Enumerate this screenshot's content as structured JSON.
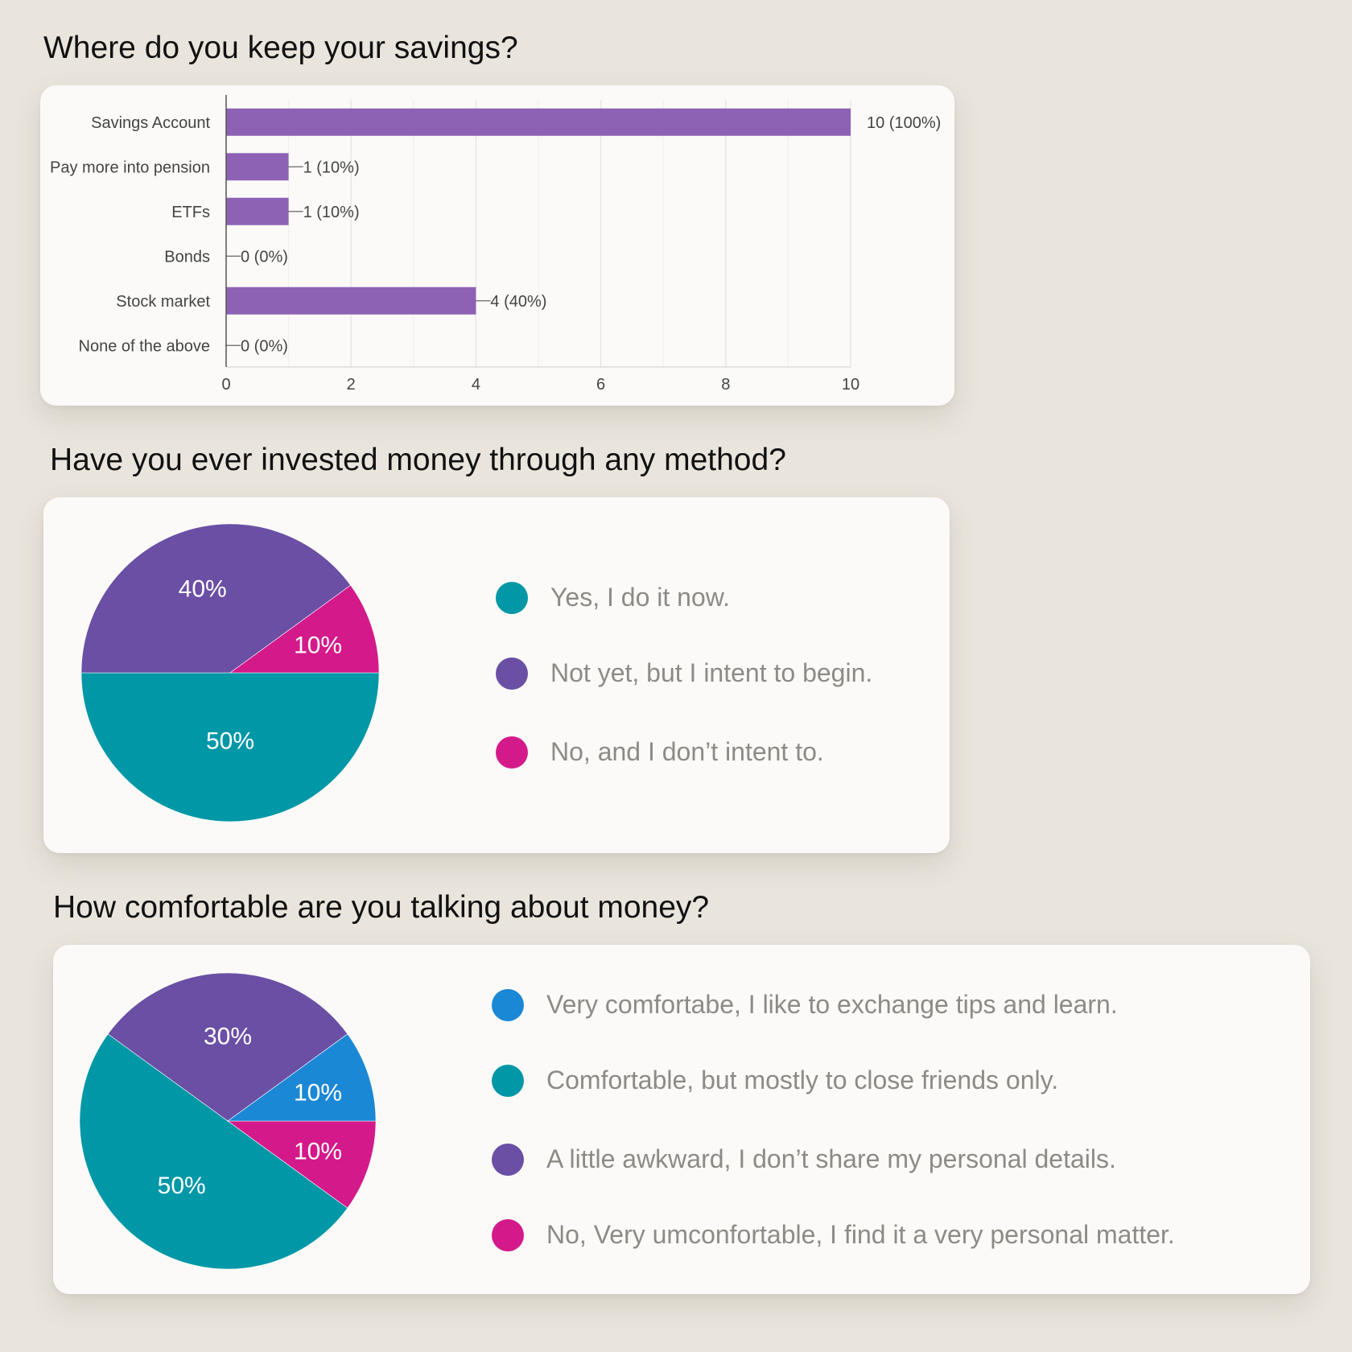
{
  "questions": [
    {
      "title": "Where do you keep your savings?",
      "chart_data": {
        "type": "bar",
        "orientation": "horizontal",
        "categories": [
          "Savings Account",
          "Pay more into pension",
          "ETFs",
          "Bonds",
          "Stock market",
          "None of the above"
        ],
        "values": [
          10,
          1,
          1,
          0,
          4,
          0
        ],
        "value_labels": [
          "10 (100%)",
          "1 (10%)",
          "1 (10%)",
          "0 (0%)",
          "4 (40%)",
          "0 (0%)"
        ],
        "xlim": [
          0,
          10
        ],
        "x_ticks": [
          "0",
          "2",
          "4",
          "6",
          "8",
          "10"
        ],
        "grid": true,
        "color": "#8d62b4"
      }
    },
    {
      "title": "Have you ever invested money through any method?",
      "chart_data": {
        "type": "pie",
        "slices": [
          {
            "name": "Yes, I do it now.",
            "value": 50,
            "label": "50%",
            "color": "#0097a7"
          },
          {
            "name": "Not yet, but I intent to begin.",
            "value": 40,
            "label": "40%",
            "color": "#6a4fa5"
          },
          {
            "name": "No, and I don’t intent to.",
            "value": 10,
            "label": "10%",
            "color": "#d4198a"
          }
        ],
        "legend_position": "right"
      }
    },
    {
      "title": "How comfortable are you talking about money?",
      "chart_data": {
        "type": "pie",
        "slices": [
          {
            "name": "Very comfortabe, I like to exchange tips and learn.",
            "value": 10,
            "label": "10%",
            "color": "#1b88d6"
          },
          {
            "name": "Comfortable, but mostly to close friends only.",
            "value": 50,
            "label": "50%",
            "color": "#0097a7"
          },
          {
            "name": "A little awkward, I don’t share my personal details.",
            "value": 30,
            "label": "30%",
            "color": "#6a4fa5"
          },
          {
            "name": "No, Very umconfortable, I find it a very personal matter.",
            "value": 10,
            "label": "10%",
            "color": "#d4198a"
          }
        ],
        "legend_position": "right"
      }
    }
  ]
}
